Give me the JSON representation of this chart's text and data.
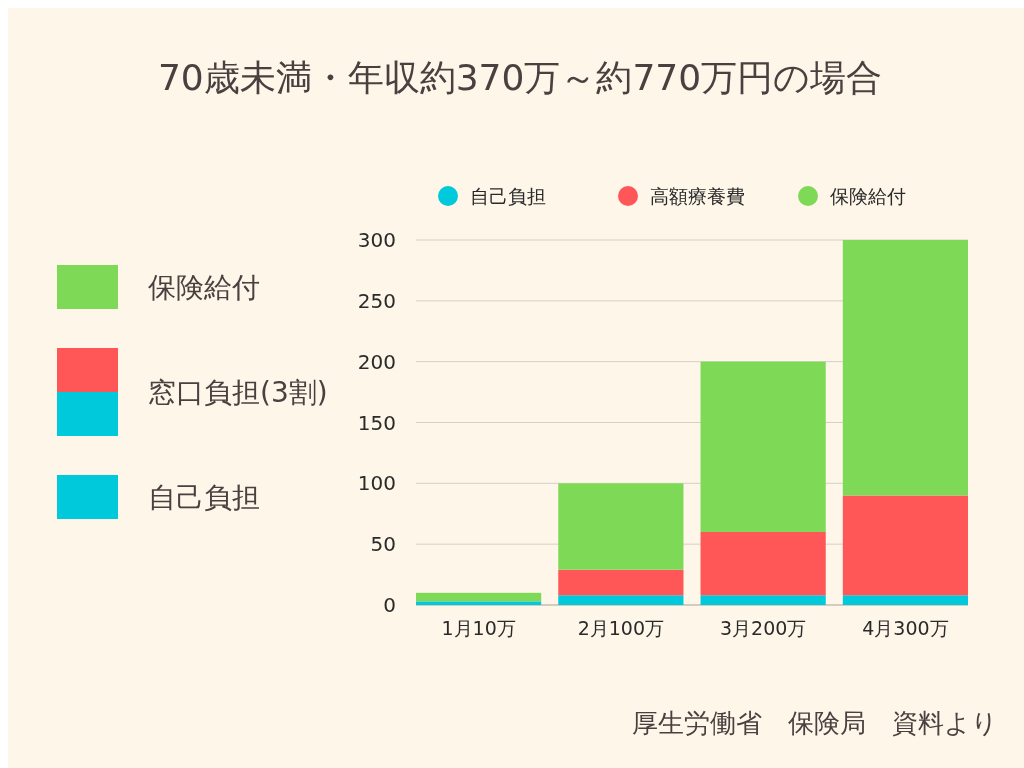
{
  "chart_data": {
    "type": "bar",
    "title": "70歳未満・年収約370万～約770万円の場合",
    "categories": [
      "1月10万",
      "2月100万",
      "3月200万",
      "4月300万"
    ],
    "stacked": true,
    "series": [
      {
        "name": "自己負担",
        "color": "#00c9dc",
        "values": [
          3,
          8,
          8,
          8
        ]
      },
      {
        "name": "高額療養費",
        "color": "#ff5757",
        "values": [
          0,
          21,
          52,
          82
        ]
      },
      {
        "name": "保険給付",
        "color": "#7ed957",
        "values": [
          7,
          71,
          140,
          210
        ]
      }
    ],
    "ylim": [
      0,
      300
    ],
    "yticks": [
      0,
      50,
      100,
      150,
      200,
      250,
      300
    ],
    "grid": "y",
    "legend": "top",
    "annotations": [
      "保険給付",
      "窓口負担(3割)",
      "自己負担",
      "厚生労働省　保険局　資料より"
    ]
  }
}
